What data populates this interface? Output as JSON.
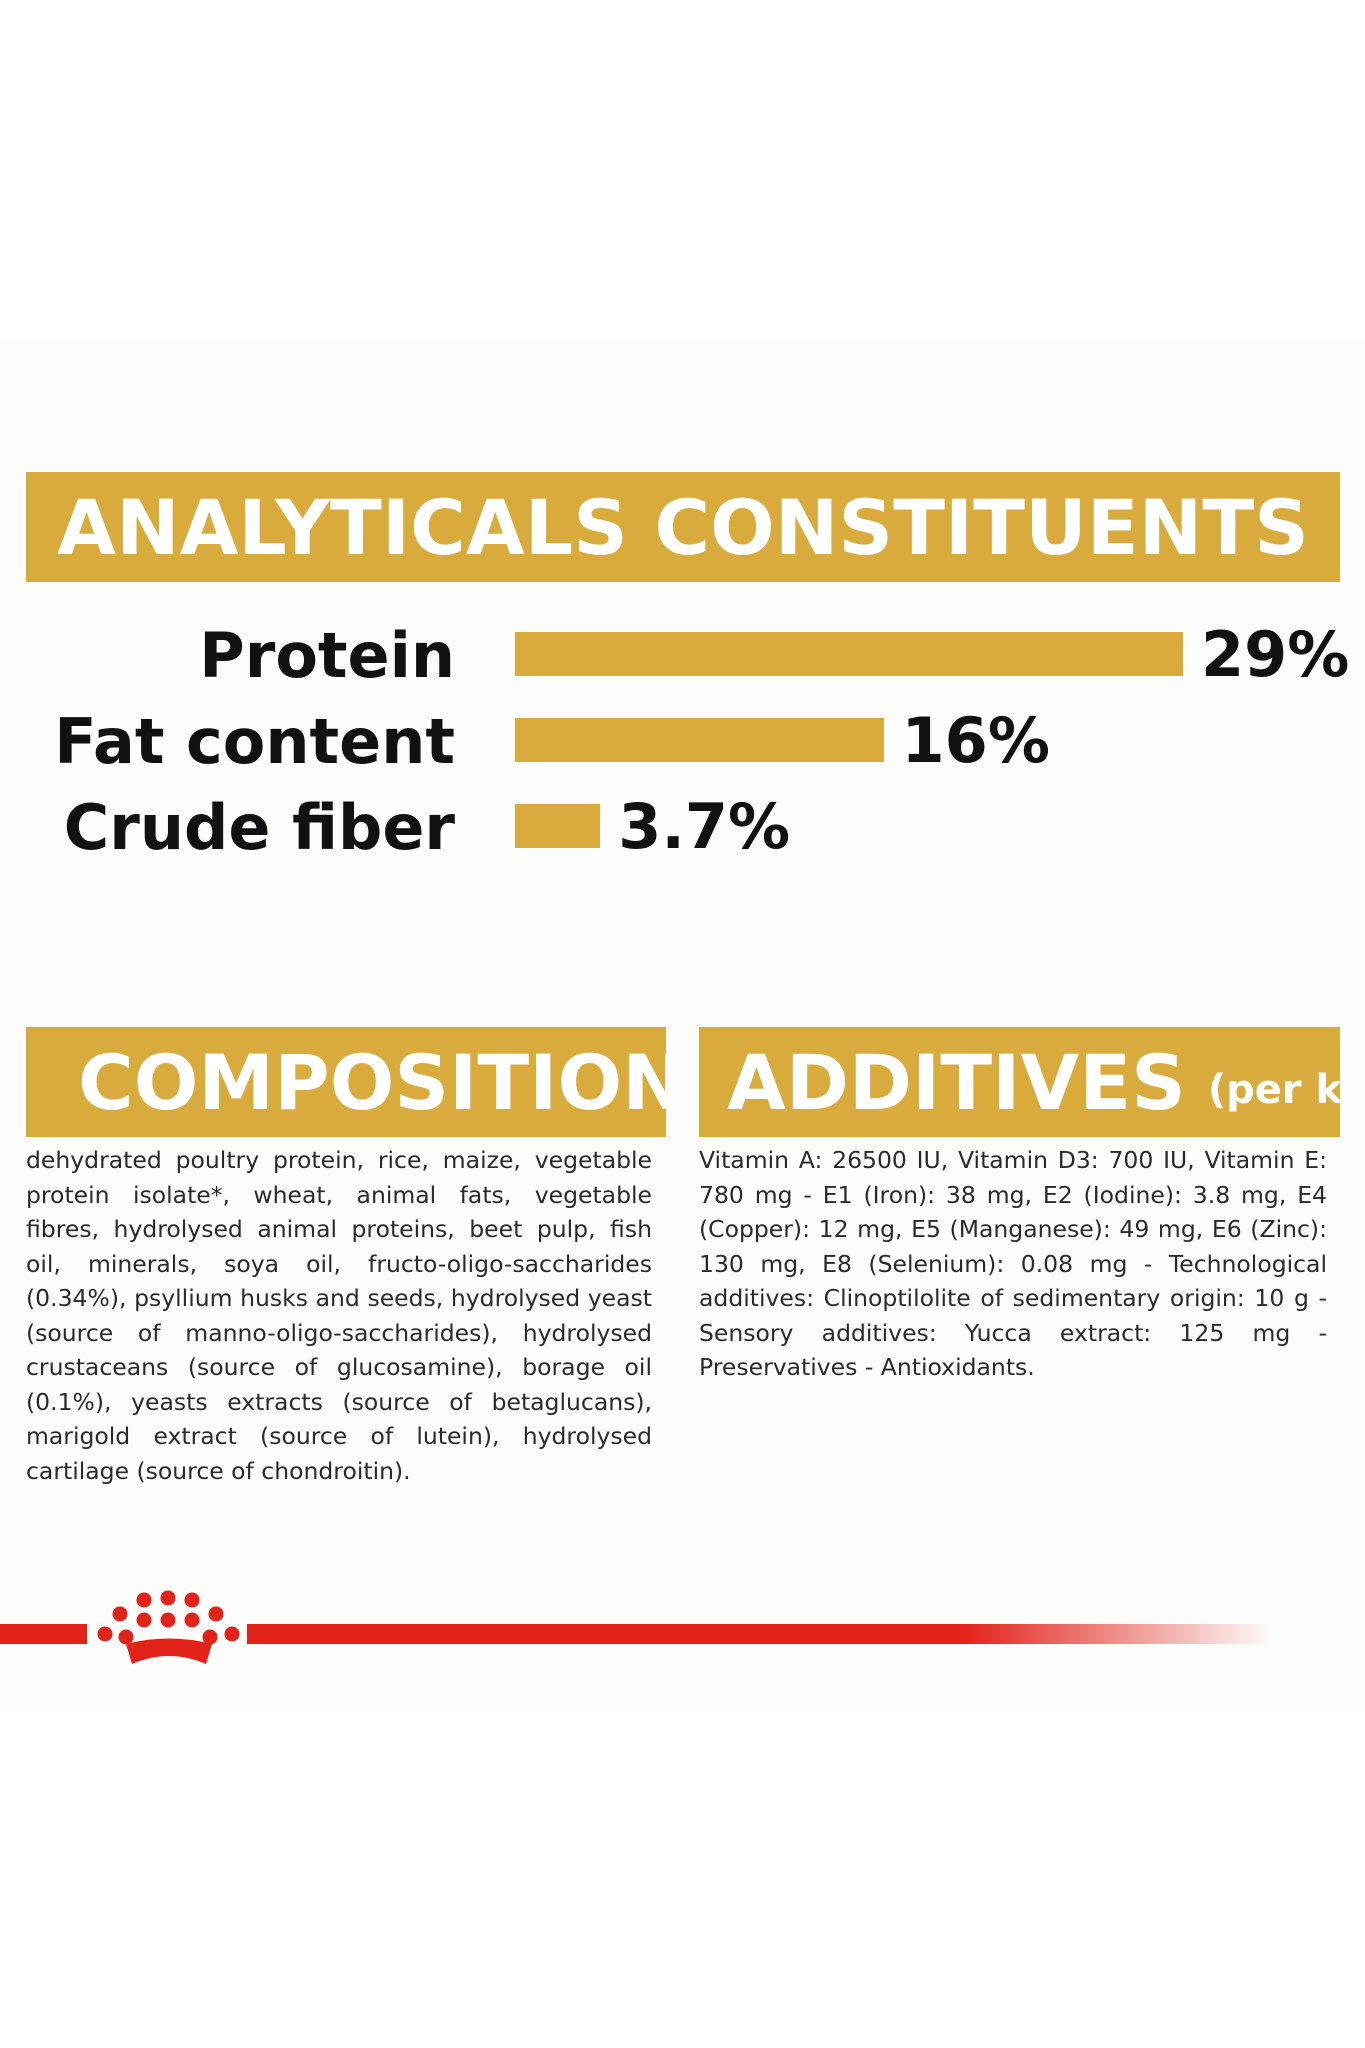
{
  "headings": {
    "analytical": "ANALYTICALS CONSTITUENTS",
    "composition": "COMPOSITION",
    "additives": "ADDITIVES",
    "additives_unit": "(per kg)"
  },
  "constituents": [
    {
      "label": "Protein",
      "value_text": "29%",
      "value": 29
    },
    {
      "label": "Fat content",
      "value_text": "16%",
      "value": 16
    },
    {
      "label": "Crude fiber",
      "value_text": "3.7%",
      "value": 3.7
    }
  ],
  "composition_text": "dehydrated poultry protein, rice, maize, vegetable protein isolate*, wheat, animal fats, vegetable fibres, hydrolysed animal proteins, beet pulp, fish oil, minerals, soya oil, fructo-oligo-saccharides (0.34%), psyllium husks and seeds, hydrolysed yeast (source of manno-oligo-saccharides), hydrolysed crustaceans (source of glucosamine), borage oil (0.1%), yeasts extracts (source of betaglucans), marigold extract (source of lutein), hydrolysed cartilage (source of chondroitin).",
  "additives_text": "Vitamin A: 26500 IU, Vitamin D3: 700 IU, Vitamin E: 780 mg - E1 (Iron): 38 mg, E2 (Iodine): 3.8 mg, E4 (Copper): 12 mg, E5 (Manganese): 49 mg, E6 (Zinc): 130 mg, E8 (Selenium): 0.08 mg - Technological additives: Clinoptilolite of sedimentary origin: 10 g - Sensory additives: Yucca extract: 125 mg - Preservatives - Antioxidants.",
  "colors": {
    "gold": "#d9aa3c",
    "brand_red": "#e2231a",
    "text": "#111111"
  },
  "logo": {
    "icon": "royal-canin-crown-icon"
  }
}
